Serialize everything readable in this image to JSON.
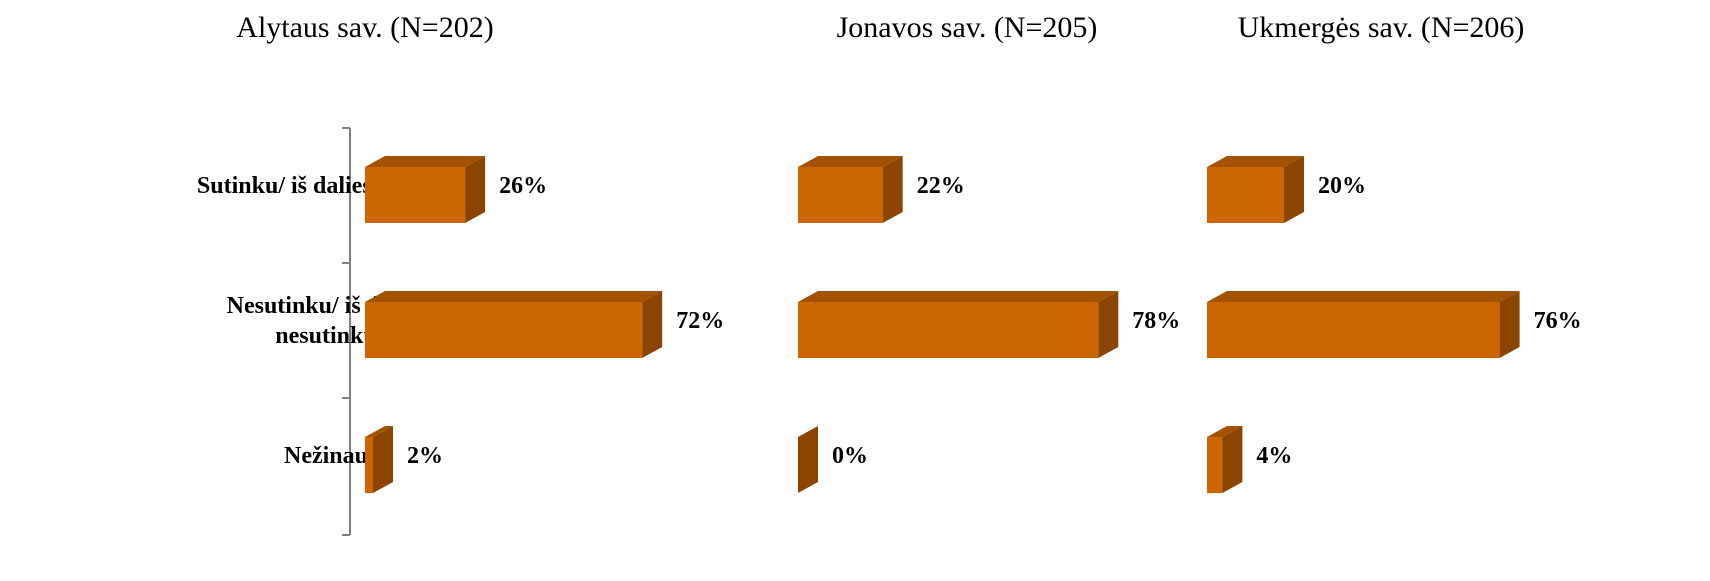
{
  "chart_data": {
    "type": "bar",
    "orientation": "horizontal",
    "style": "3d",
    "categories": [
      "Sutinku/ iš dalies sutinku",
      "Nesutinku/ iš dalies nesutinku",
      "Nežinau"
    ],
    "category_lines": [
      [
        "Sutinku/ iš dalies sutinku"
      ],
      [
        "Nesutinku/ iš dalies",
        "nesutinku"
      ],
      [
        "Nežinau"
      ]
    ],
    "series": [
      {
        "title": "Alytaus sav. (N=202)",
        "values": [
          26,
          72,
          2
        ],
        "labels": [
          "26%",
          "72%",
          "2%"
        ]
      },
      {
        "title": "Jonavos sav. (N=205)",
        "values": [
          22,
          78,
          0
        ],
        "labels": [
          "22%",
          "78%",
          "0%"
        ]
      },
      {
        "title": "Ukmergės sav. (N=206)",
        "values": [
          20,
          76,
          4
        ],
        "labels": [
          "20%",
          "76%",
          "4%"
        ]
      }
    ],
    "unit": "%",
    "grid": false,
    "legend": "none",
    "colors": {
      "front": "#CC6600",
      "top": "#A35200",
      "side": "#8B4500",
      "axis": "#808080"
    }
  }
}
